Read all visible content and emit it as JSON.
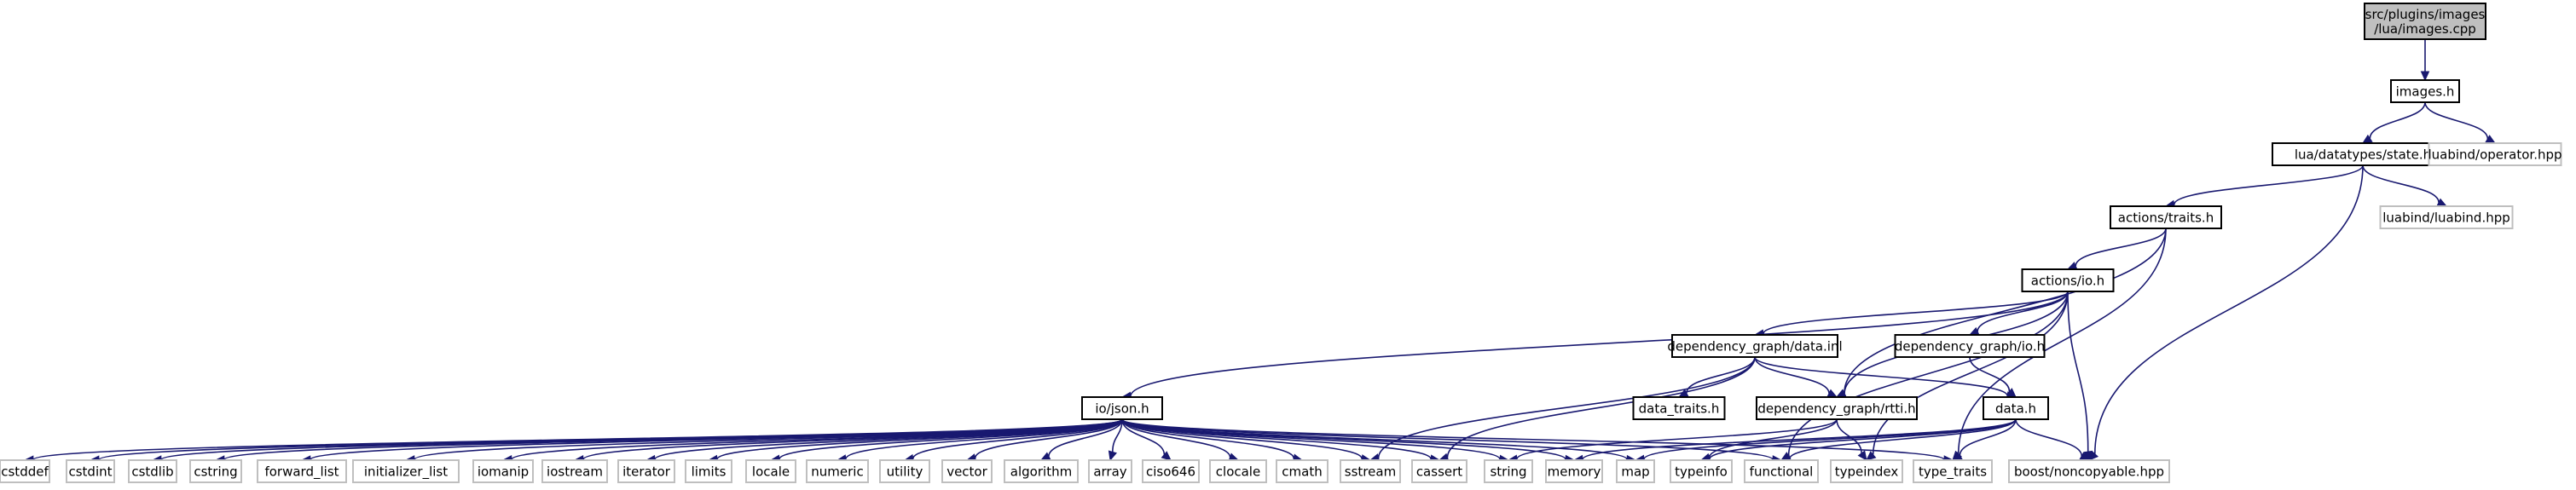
{
  "diagram": {
    "type": "include-dependency-graph",
    "colors": {
      "edge": "#191970",
      "root_fill": "#bfbfbf",
      "node_border": "#000000",
      "external_border": "#bfbfbf"
    },
    "nodes": [
      {
        "id": "root",
        "kind": "root",
        "lines": [
          "src/plugins/images",
          "/lua/images.cpp"
        ]
      },
      {
        "id": "images_h",
        "kind": "local",
        "lines": [
          "images.h"
        ]
      },
      {
        "id": "state_h",
        "kind": "local",
        "lines": [
          "lua/datatypes/state.h"
        ]
      },
      {
        "id": "operator_hpp",
        "kind": "external",
        "lines": [
          "luabind/operator.hpp"
        ]
      },
      {
        "id": "luabind_hpp",
        "kind": "external",
        "lines": [
          "luabind/luabind.hpp"
        ]
      },
      {
        "id": "traits_h",
        "kind": "local",
        "lines": [
          "actions/traits.h"
        ]
      },
      {
        "id": "actions_io_h",
        "kind": "local",
        "lines": [
          "actions/io.h"
        ]
      },
      {
        "id": "data_inl",
        "kind": "local",
        "lines": [
          "dependency_graph/data.inl"
        ]
      },
      {
        "id": "dg_io_h",
        "kind": "local",
        "lines": [
          "dependency_graph/io.h"
        ]
      },
      {
        "id": "data_traits_h",
        "kind": "local",
        "lines": [
          "data_traits.h"
        ]
      },
      {
        "id": "rtti_h",
        "kind": "local",
        "lines": [
          "dependency_graph/rtti.h"
        ]
      },
      {
        "id": "data_h",
        "kind": "local",
        "lines": [
          "data.h"
        ]
      },
      {
        "id": "json_h",
        "kind": "local",
        "lines": [
          "io/json.h"
        ]
      },
      {
        "id": "cstddef",
        "kind": "external",
        "lines": [
          "cstddef"
        ]
      },
      {
        "id": "cstdint",
        "kind": "external",
        "lines": [
          "cstdint"
        ]
      },
      {
        "id": "cstdlib",
        "kind": "external",
        "lines": [
          "cstdlib"
        ]
      },
      {
        "id": "cstring",
        "kind": "external",
        "lines": [
          "cstring"
        ]
      },
      {
        "id": "forward_list",
        "kind": "external",
        "lines": [
          "forward_list"
        ]
      },
      {
        "id": "initializer_list",
        "kind": "external",
        "lines": [
          "initializer_list"
        ]
      },
      {
        "id": "iomanip",
        "kind": "external",
        "lines": [
          "iomanip"
        ]
      },
      {
        "id": "iostream",
        "kind": "external",
        "lines": [
          "iostream"
        ]
      },
      {
        "id": "iterator",
        "kind": "external",
        "lines": [
          "iterator"
        ]
      },
      {
        "id": "limits",
        "kind": "external",
        "lines": [
          "limits"
        ]
      },
      {
        "id": "locale",
        "kind": "external",
        "lines": [
          "locale"
        ]
      },
      {
        "id": "numeric",
        "kind": "external",
        "lines": [
          "numeric"
        ]
      },
      {
        "id": "utility",
        "kind": "external",
        "lines": [
          "utility"
        ]
      },
      {
        "id": "vector",
        "kind": "external",
        "lines": [
          "vector"
        ]
      },
      {
        "id": "algorithm",
        "kind": "external",
        "lines": [
          "algorithm"
        ]
      },
      {
        "id": "array",
        "kind": "external",
        "lines": [
          "array"
        ]
      },
      {
        "id": "ciso646",
        "kind": "external",
        "lines": [
          "ciso646"
        ]
      },
      {
        "id": "clocale",
        "kind": "external",
        "lines": [
          "clocale"
        ]
      },
      {
        "id": "cmath",
        "kind": "external",
        "lines": [
          "cmath"
        ]
      },
      {
        "id": "sstream",
        "kind": "external",
        "lines": [
          "sstream"
        ]
      },
      {
        "id": "cassert",
        "kind": "external",
        "lines": [
          "cassert"
        ]
      },
      {
        "id": "string",
        "kind": "external",
        "lines": [
          "string"
        ]
      },
      {
        "id": "memory",
        "kind": "external",
        "lines": [
          "memory"
        ]
      },
      {
        "id": "map",
        "kind": "external",
        "lines": [
          "map"
        ]
      },
      {
        "id": "typeinfo",
        "kind": "external",
        "lines": [
          "typeinfo"
        ]
      },
      {
        "id": "functional",
        "kind": "external",
        "lines": [
          "functional"
        ]
      },
      {
        "id": "typeindex",
        "kind": "external",
        "lines": [
          "typeindex"
        ]
      },
      {
        "id": "type_traits",
        "kind": "external",
        "lines": [
          "type_traits"
        ]
      },
      {
        "id": "noncopyable",
        "kind": "external",
        "lines": [
          "boost/noncopyable.hpp"
        ]
      }
    ],
    "edges": [
      [
        "root",
        "images_h"
      ],
      [
        "images_h",
        "state_h"
      ],
      [
        "images_h",
        "operator_hpp"
      ],
      [
        "state_h",
        "traits_h"
      ],
      [
        "state_h",
        "luabind_hpp"
      ],
      [
        "state_h",
        "noncopyable"
      ],
      [
        "traits_h",
        "actions_io_h"
      ],
      [
        "traits_h",
        "rtti_h"
      ],
      [
        "traits_h",
        "type_traits"
      ],
      [
        "actions_io_h",
        "json_h"
      ],
      [
        "actions_io_h",
        "data_inl"
      ],
      [
        "actions_io_h",
        "dg_io_h"
      ],
      [
        "actions_io_h",
        "rtti_h"
      ],
      [
        "actions_io_h",
        "functional"
      ],
      [
        "actions_io_h",
        "typeindex"
      ],
      [
        "actions_io_h",
        "noncopyable"
      ],
      [
        "data_inl",
        "data_traits_h"
      ],
      [
        "data_inl",
        "rtti_h"
      ],
      [
        "data_inl",
        "data_h"
      ],
      [
        "data_inl",
        "sstream"
      ],
      [
        "data_inl",
        "cassert"
      ],
      [
        "dg_io_h",
        "data_h"
      ],
      [
        "rtti_h",
        "string"
      ],
      [
        "rtti_h",
        "typeinfo"
      ],
      [
        "rtti_h",
        "typeindex"
      ],
      [
        "data_h",
        "memory"
      ],
      [
        "data_h",
        "map"
      ],
      [
        "data_h",
        "functional"
      ],
      [
        "data_h",
        "typeinfo"
      ],
      [
        "data_h",
        "type_traits"
      ],
      [
        "data_h",
        "noncopyable"
      ],
      [
        "json_h",
        "cstddef"
      ],
      [
        "json_h",
        "cstdint"
      ],
      [
        "json_h",
        "cstdlib"
      ],
      [
        "json_h",
        "cstring"
      ],
      [
        "json_h",
        "forward_list"
      ],
      [
        "json_h",
        "initializer_list"
      ],
      [
        "json_h",
        "iomanip"
      ],
      [
        "json_h",
        "iostream"
      ],
      [
        "json_h",
        "iterator"
      ],
      [
        "json_h",
        "limits"
      ],
      [
        "json_h",
        "locale"
      ],
      [
        "json_h",
        "numeric"
      ],
      [
        "json_h",
        "utility"
      ],
      [
        "json_h",
        "vector"
      ],
      [
        "json_h",
        "algorithm"
      ],
      [
        "json_h",
        "array"
      ],
      [
        "json_h",
        "ciso646"
      ],
      [
        "json_h",
        "clocale"
      ],
      [
        "json_h",
        "cmath"
      ],
      [
        "json_h",
        "sstream"
      ],
      [
        "json_h",
        "cassert"
      ],
      [
        "json_h",
        "string"
      ],
      [
        "json_h",
        "memory"
      ],
      [
        "json_h",
        "map"
      ],
      [
        "json_h",
        "functional"
      ],
      [
        "json_h",
        "type_traits"
      ]
    ]
  }
}
